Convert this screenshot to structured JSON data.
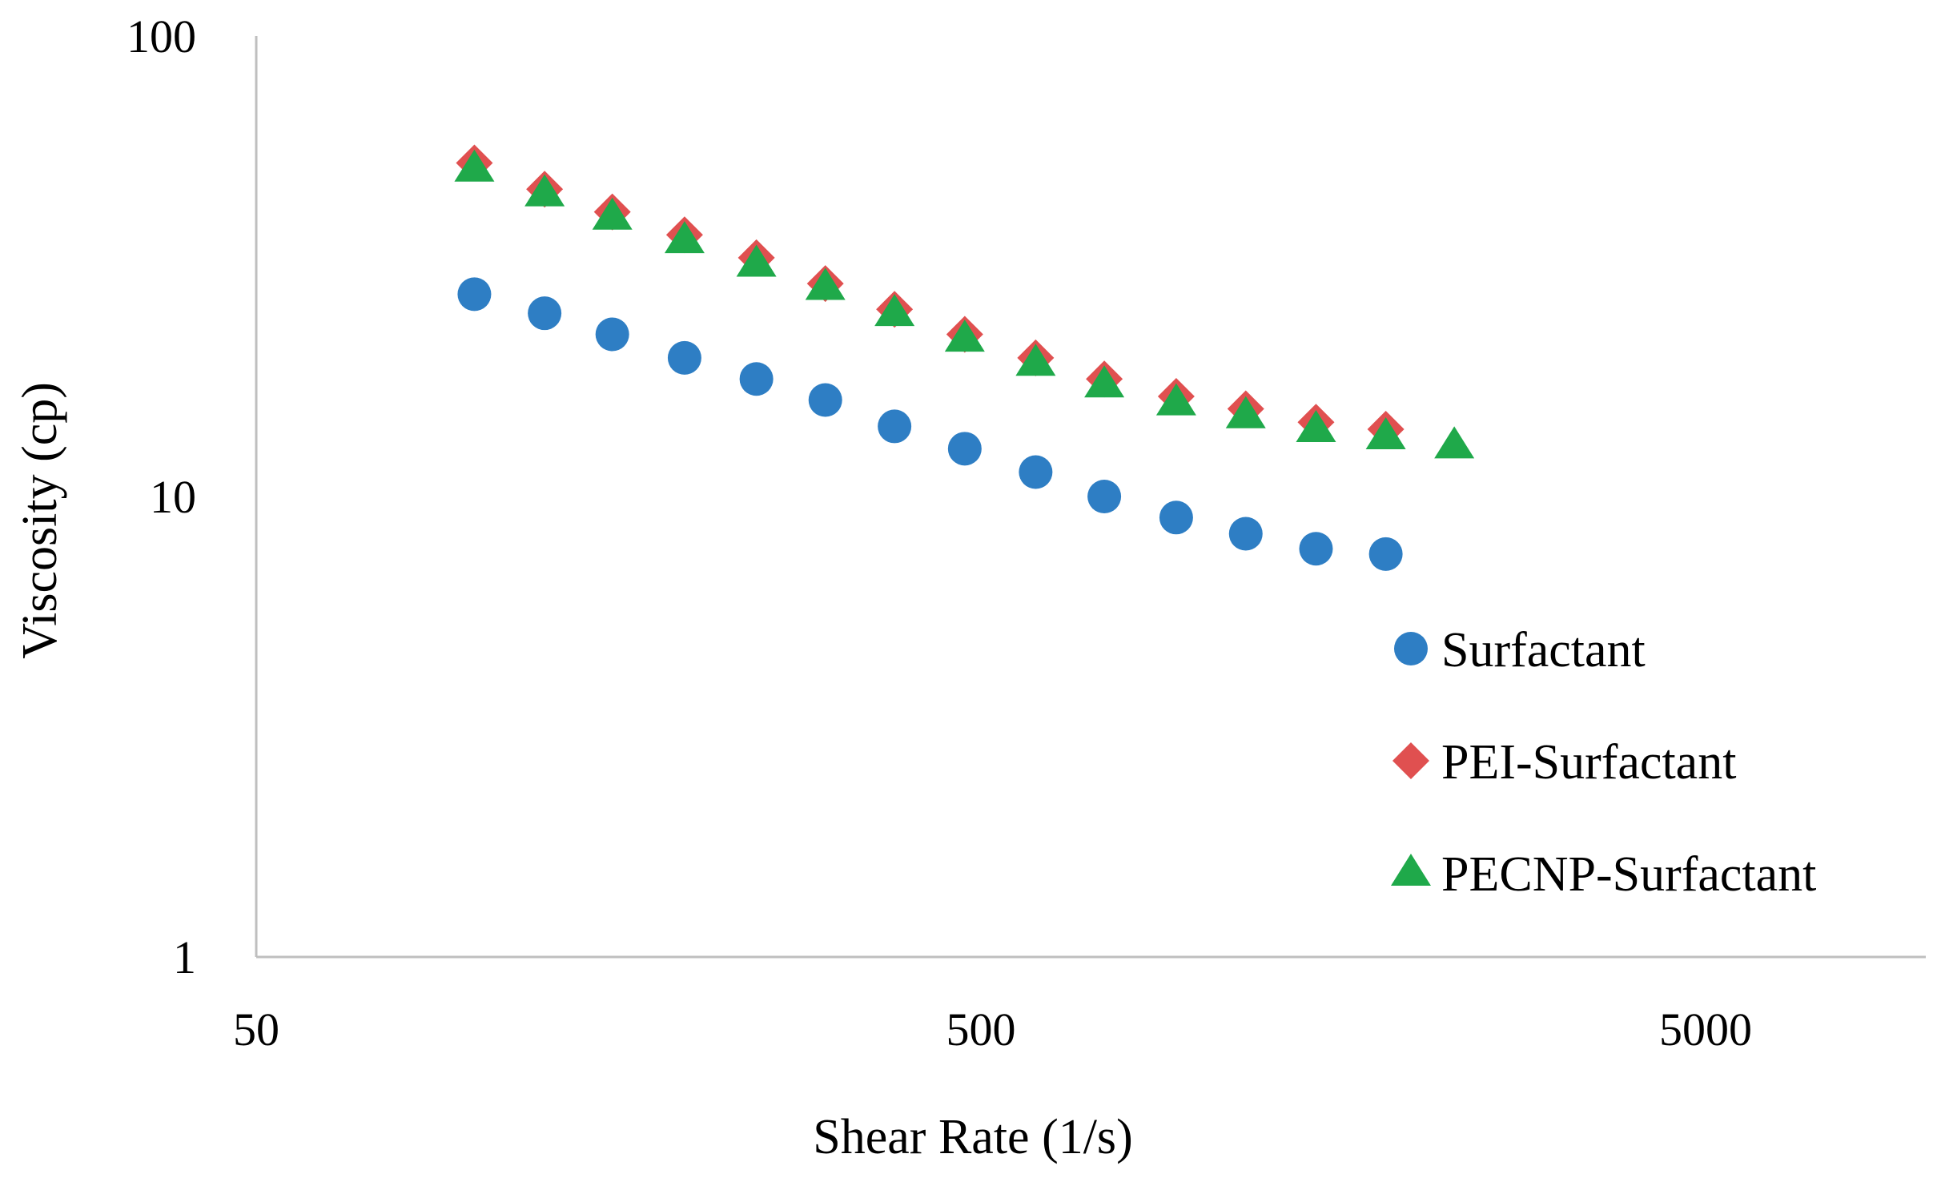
{
  "chart_data": {
    "type": "scatter",
    "title": "",
    "xlabel": "Shear Rate (1/s)",
    "ylabel": "Viscosity (cp)",
    "xscale": "log",
    "yscale": "log",
    "xlim": [
      50,
      10000
    ],
    "ylim": [
      1,
      100
    ],
    "xticks": [
      50,
      500,
      5000
    ],
    "xtick_labels": [
      "50",
      "500",
      "5000"
    ],
    "yticks": [
      1,
      10,
      100
    ],
    "ytick_labels": [
      "1",
      "10",
      "100"
    ],
    "grid": false,
    "legend_position": "right",
    "series": [
      {
        "name": "Surfactant",
        "marker": "circle",
        "color": "#2E7EC4",
        "x": [
          100,
          125,
          155,
          195,
          245,
          305,
          380,
          475,
          595,
          740,
          930,
          1160,
          1450,
          1810
        ],
        "y": [
          27.5,
          25.0,
          22.5,
          20.0,
          18.0,
          16.2,
          14.2,
          12.7,
          11.3,
          10.0,
          9.0,
          8.3,
          7.7,
          7.5
        ]
      },
      {
        "name": "PEI-Surfactant",
        "marker": "diamond",
        "color": "#E05050",
        "x": [
          100,
          125,
          155,
          195,
          245,
          305,
          380,
          475,
          595,
          740,
          930,
          1160,
          1450,
          1810
        ],
        "y": [
          53.0,
          46.5,
          41.5,
          37.0,
          33.0,
          29.0,
          25.5,
          22.5,
          20.0,
          18.0,
          16.5,
          15.5,
          14.5,
          14.0
        ]
      },
      {
        "name": "PECNP-Surfactant",
        "marker": "triangle",
        "color": "#1FA94A",
        "x": [
          100,
          125,
          155,
          195,
          245,
          305,
          380,
          475,
          595,
          740,
          930,
          1160,
          1450,
          1810,
          2250
        ],
        "y": [
          51.5,
          45.5,
          40.5,
          36.0,
          32.0,
          28.5,
          25.0,
          22.0,
          19.5,
          17.5,
          16.0,
          15.0,
          14.0,
          13.5,
          12.9
        ]
      }
    ]
  }
}
